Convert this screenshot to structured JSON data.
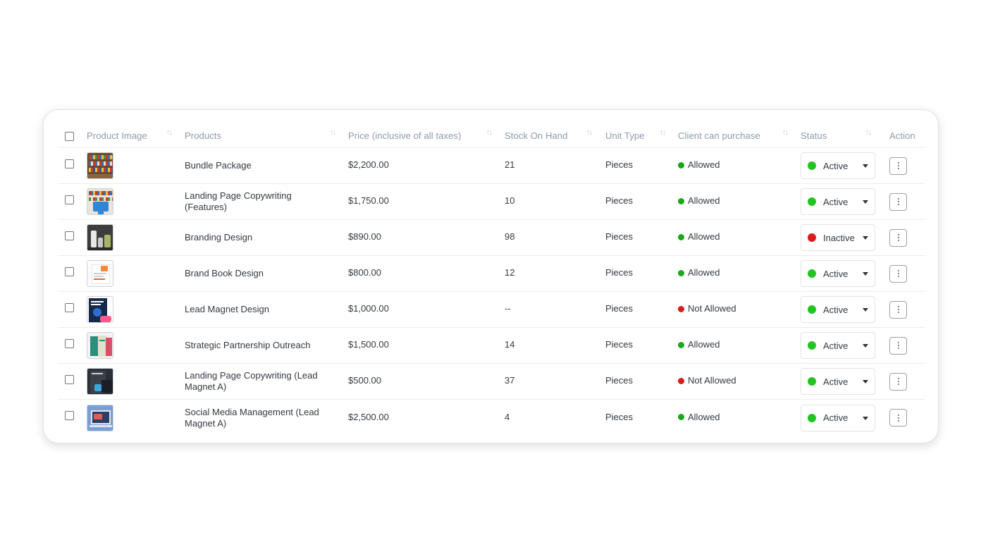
{
  "columns": {
    "product_image": "Product Image",
    "products": "Products",
    "price": "Price (inclusive of all taxes)",
    "stock": "Stock On Hand",
    "unit": "Unit Type",
    "client": "Client can purchase",
    "status": "Status",
    "action": "Action"
  },
  "colors": {
    "allowed": "#1aa71a",
    "not_allowed": "#d91c1c",
    "active": "#22c422",
    "inactive": "#d91c1c"
  },
  "rows": [
    {
      "product": "Bundle Package",
      "price": "$2,200.00",
      "stock": "21",
      "unit": "Pieces",
      "client": "Allowed",
      "status": "Active",
      "thumb": "bookshelf-thumb"
    },
    {
      "product": "Landing Page Copywriting (Features)",
      "price": "$1,750.00",
      "stock": "10",
      "unit": "Pieces",
      "client": "Allowed",
      "status": "Active",
      "thumb": "bookshelf-sign-thumb"
    },
    {
      "product": "Branding Design",
      "price": "$890.00",
      "stock": "98",
      "unit": "Pieces",
      "client": "Allowed",
      "status": "Inactive",
      "thumb": "bottles-thumb"
    },
    {
      "product": "Brand Book Design",
      "price": "$800.00",
      "stock": "12",
      "unit": "Pieces",
      "client": "Allowed",
      "status": "Active",
      "thumb": "document-thumb"
    },
    {
      "product": "Lead Magnet Design",
      "price": "$1,000.00",
      "stock": "--",
      "unit": "Pieces",
      "client": "Not Allowed",
      "status": "Active",
      "thumb": "ebook-cover-thumb"
    },
    {
      "product": "Strategic Partnership Outreach",
      "price": "$1,500.00",
      "stock": "14",
      "unit": "Pieces",
      "client": "Allowed",
      "status": "Active",
      "thumb": "book-stack-thumb"
    },
    {
      "product": "Landing Page Copywriting (Lead Magnet A)",
      "price": "$500.00",
      "stock": "37",
      "unit": "Pieces",
      "client": "Not Allowed",
      "status": "Active",
      "thumb": "dark-ebook-thumb"
    },
    {
      "product": "Social Media Management (Lead Magnet A)",
      "price": "$2,500.00",
      "stock": "4",
      "unit": "Pieces",
      "client": "Allowed",
      "status": "Active",
      "thumb": "laptop-thumb"
    }
  ]
}
